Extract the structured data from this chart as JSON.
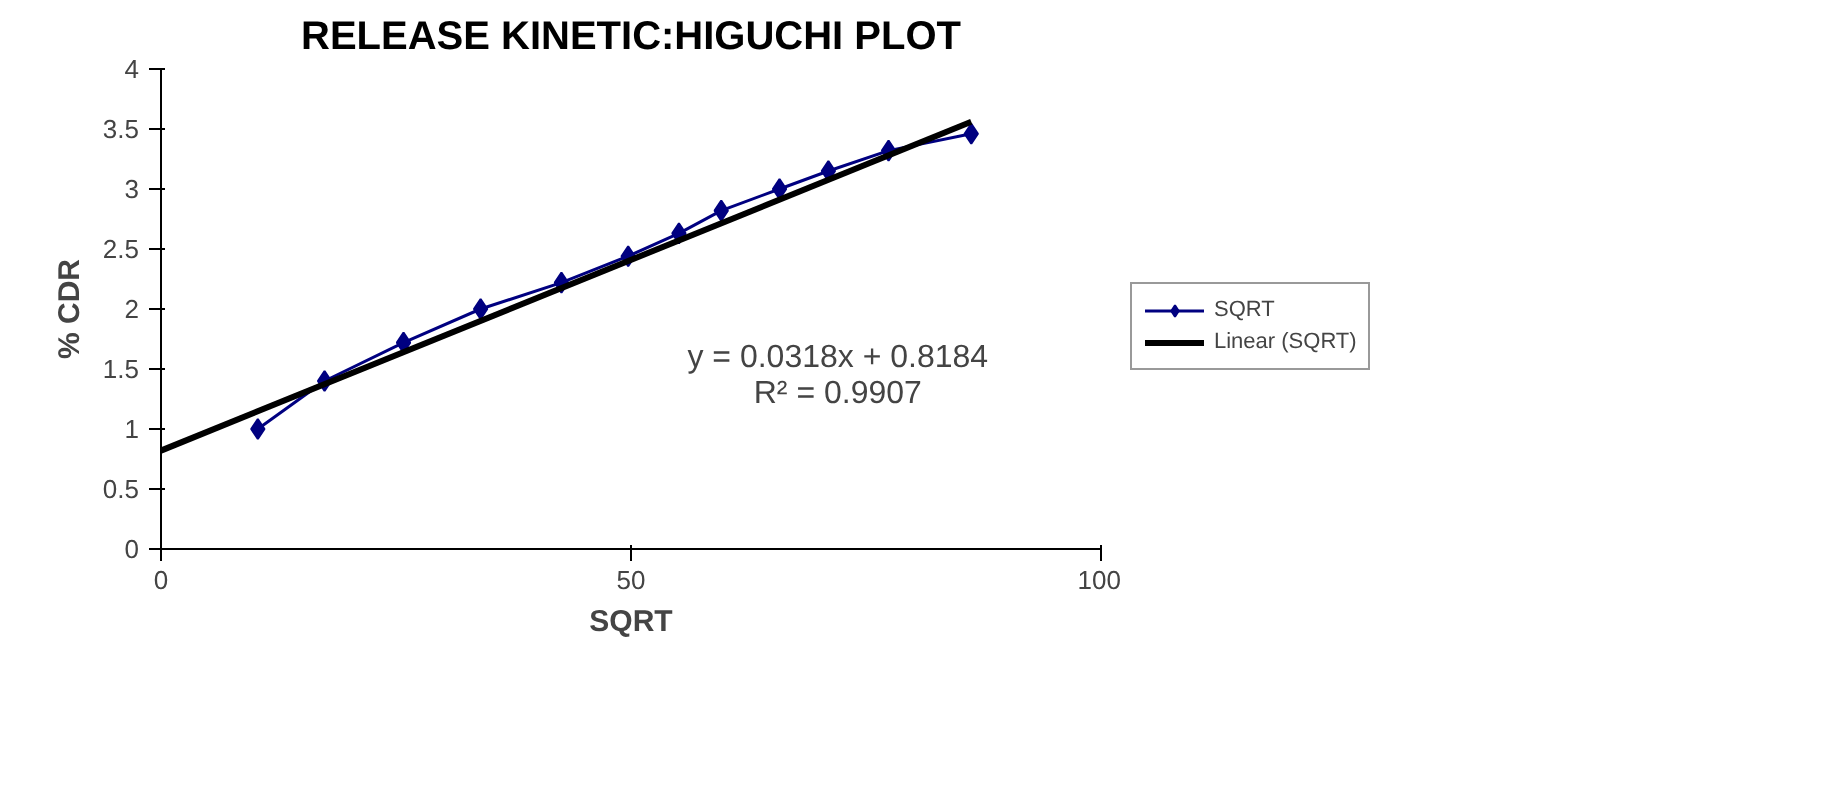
{
  "chart_data": {
    "type": "line",
    "title": "RELEASE KINETIC:HIGUCHI PLOT",
    "xlabel": "SQRT",
    "ylabel": "% CDR",
    "xlim": [
      0,
      100
    ],
    "xticks": [
      0,
      50,
      100
    ],
    "ylim": [
      0,
      4
    ],
    "yticks": [
      0,
      0.5,
      1,
      1.5,
      2,
      2.5,
      3,
      3.5,
      4
    ],
    "x": [
      10.3,
      17.4,
      25.8,
      34.0,
      42.6,
      49.7,
      55.1,
      59.6,
      65.8,
      71.0,
      77.4,
      86.2
    ],
    "series": [
      {
        "name": "SQRT",
        "color": "#000080",
        "values": [
          1.0,
          1.4,
          1.72,
          2.0,
          2.22,
          2.44,
          2.63,
          2.82,
          3.0,
          3.15,
          3.32,
          3.46
        ],
        "marker": "diamond"
      },
      {
        "name": "Linear (SQRT)",
        "color": "#000000",
        "type": "line",
        "x": [
          0,
          86.2
        ],
        "values": [
          0.82,
          3.56
        ],
        "marker": "none"
      }
    ],
    "annotations": [
      "y = 0.0318x + 0.8184",
      "R² = 0.9907"
    ],
    "grid": false,
    "legend": "right"
  }
}
